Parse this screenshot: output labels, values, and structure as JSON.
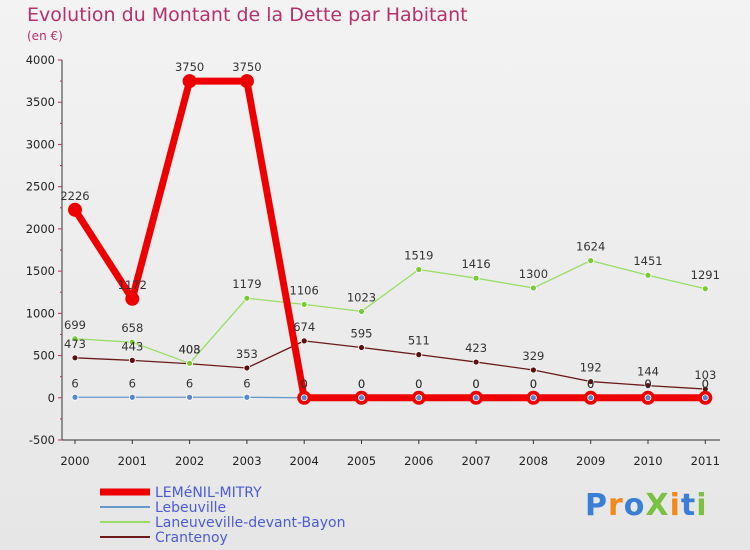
{
  "chart_data": {
    "type": "line",
    "title": "Evolution du Montant de la Dette par Habitant",
    "subtitle": "(en €)",
    "xlabel": "",
    "ylabel": "",
    "ylim": [
      -500,
      4000
    ],
    "yticks": [
      -500,
      0,
      500,
      1000,
      1500,
      2000,
      2500,
      3000,
      3500,
      4000
    ],
    "x": [
      "2000",
      "2001",
      "2002",
      "2003",
      "2004",
      "2005",
      "2006",
      "2007",
      "2008",
      "2009",
      "2010",
      "2011"
    ],
    "series": [
      {
        "name": "Crantenoy",
        "color": "#6b1a1a",
        "marker": "#5a1010",
        "values": [
          473,
          443,
          403,
          353,
          674,
          595,
          511,
          423,
          329,
          192,
          144,
          103
        ]
      },
      {
        "name": "Laneuveville-devant-Bayon",
        "color": "#99dd66",
        "marker": "#77cc33",
        "values": [
          699,
          658,
          408,
          1179,
          1106,
          1023,
          1519,
          1416,
          1300,
          1624,
          1451,
          1291
        ]
      },
      {
        "name": "Lebeuville",
        "color": "#6699cc",
        "marker": "#5588cc",
        "values": [
          6,
          6,
          6,
          6,
          0,
          0,
          0,
          0,
          0,
          0,
          0,
          0
        ]
      },
      {
        "name": "LEMéNIL-MITRY",
        "color": "#ee0000",
        "marker": "#ee0000",
        "values": [
          2226,
          1172,
          3750,
          3750,
          0,
          0,
          0,
          0,
          0,
          0,
          0,
          0
        ]
      }
    ],
    "legend": [
      "LEMéNIL-MITRY",
      "Lebeuville",
      "Laneuveville-devant-Bayon",
      "Crantenoy"
    ],
    "grid": false,
    "legend_position": "bottom-left"
  },
  "logo": {
    "text": "ProXiti",
    "letters": [
      "P",
      "r",
      "o",
      "X",
      "i",
      "t",
      "i"
    ],
    "colors": [
      "#3a7fd5",
      "#f08a1c",
      "#3a7fd5",
      "#7ac142",
      "#f08a1c",
      "#3a7fd5",
      "#7ac142"
    ]
  }
}
